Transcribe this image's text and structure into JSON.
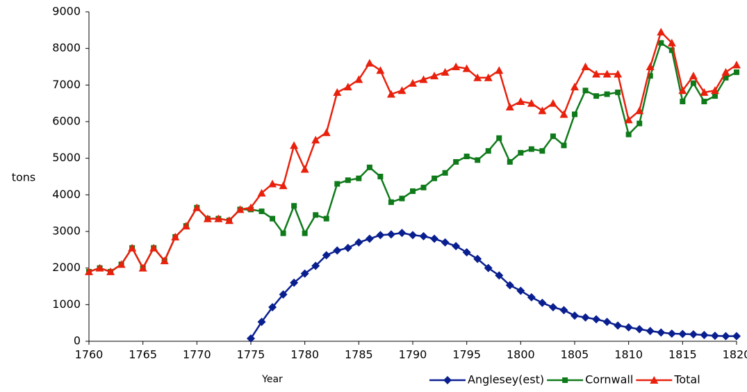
{
  "chart_data": {
    "type": "line",
    "x_label": "Year",
    "y_label": "tons",
    "x": [
      1760,
      1761,
      1762,
      1763,
      1764,
      1765,
      1766,
      1767,
      1768,
      1769,
      1770,
      1771,
      1772,
      1773,
      1774,
      1775,
      1776,
      1777,
      1778,
      1779,
      1780,
      1781,
      1782,
      1783,
      1784,
      1785,
      1786,
      1787,
      1788,
      1789,
      1790,
      1791,
      1792,
      1793,
      1794,
      1795,
      1796,
      1797,
      1798,
      1799,
      1800,
      1801,
      1802,
      1803,
      1804,
      1805,
      1806,
      1807,
      1808,
      1809,
      1810,
      1811,
      1812,
      1813,
      1814,
      1815,
      1816,
      1817,
      1818,
      1819,
      1820
    ],
    "series": [
      {
        "name": "Anglesey(est)",
        "color": "#0a1f8f",
        "marker": "diamond",
        "values": [
          null,
          null,
          null,
          null,
          null,
          null,
          null,
          null,
          null,
          null,
          null,
          null,
          null,
          null,
          null,
          75,
          530,
          930,
          1280,
          1600,
          1850,
          2060,
          2350,
          2480,
          2550,
          2700,
          2800,
          2900,
          2920,
          2960,
          2900,
          2870,
          2800,
          2700,
          2600,
          2430,
          2250,
          2000,
          1800,
          1530,
          1380,
          1200,
          1050,
          930,
          850,
          700,
          650,
          600,
          530,
          430,
          380,
          330,
          280,
          240,
          210,
          200,
          190,
          170,
          150,
          140,
          140
        ]
      },
      {
        "name": "Cornwall",
        "color": "#0f7a1a",
        "marker": "square",
        "values": [
          1900,
          2000,
          1900,
          2100,
          2550,
          2000,
          2550,
          2200,
          2850,
          3150,
          3650,
          3350,
          3350,
          3300,
          3600,
          3600,
          3550,
          3350,
          2950,
          3700,
          2950,
          3450,
          3350,
          4300,
          4400,
          4450,
          4750,
          4500,
          3800,
          3900,
          4100,
          4200,
          4450,
          4600,
          4900,
          5050,
          4950,
          5200,
          5550,
          4900,
          5150,
          5250,
          5200,
          5600,
          5350,
          6200,
          6850,
          6700,
          6750,
          6800,
          5650,
          5950,
          7250,
          8150,
          7950,
          6550,
          7050,
          6550,
          6700,
          7200,
          7350
        ]
      },
      {
        "name": "Total",
        "color": "#e8200c",
        "marker": "triangle",
        "values": [
          1900,
          2000,
          1900,
          2100,
          2550,
          2000,
          2550,
          2200,
          2850,
          3150,
          3650,
          3350,
          3350,
          3300,
          3600,
          3650,
          4050,
          4300,
          4250,
          5350,
          4700,
          5500,
          5700,
          6800,
          6950,
          7150,
          7600,
          7400,
          6750,
          6850,
          7050,
          7150,
          7250,
          7350,
          7500,
          7450,
          7200,
          7200,
          7400,
          6400,
          6550,
          6500,
          6300,
          6500,
          6200,
          6950,
          7500,
          7300,
          7300,
          7300,
          6050,
          6300,
          7500,
          8450,
          8150,
          6850,
          7250,
          6800,
          6850,
          7350,
          7550
        ]
      }
    ],
    "xlim": [
      1760,
      1820
    ],
    "xticks": [
      1760,
      1765,
      1770,
      1775,
      1780,
      1785,
      1790,
      1795,
      1800,
      1805,
      1810,
      1815,
      1820
    ],
    "ylim": [
      0,
      9000
    ],
    "yticks": [
      0,
      1000,
      2000,
      3000,
      4000,
      5000,
      6000,
      7000,
      8000,
      9000
    ],
    "grid": false,
    "legend": "bottom-right"
  }
}
